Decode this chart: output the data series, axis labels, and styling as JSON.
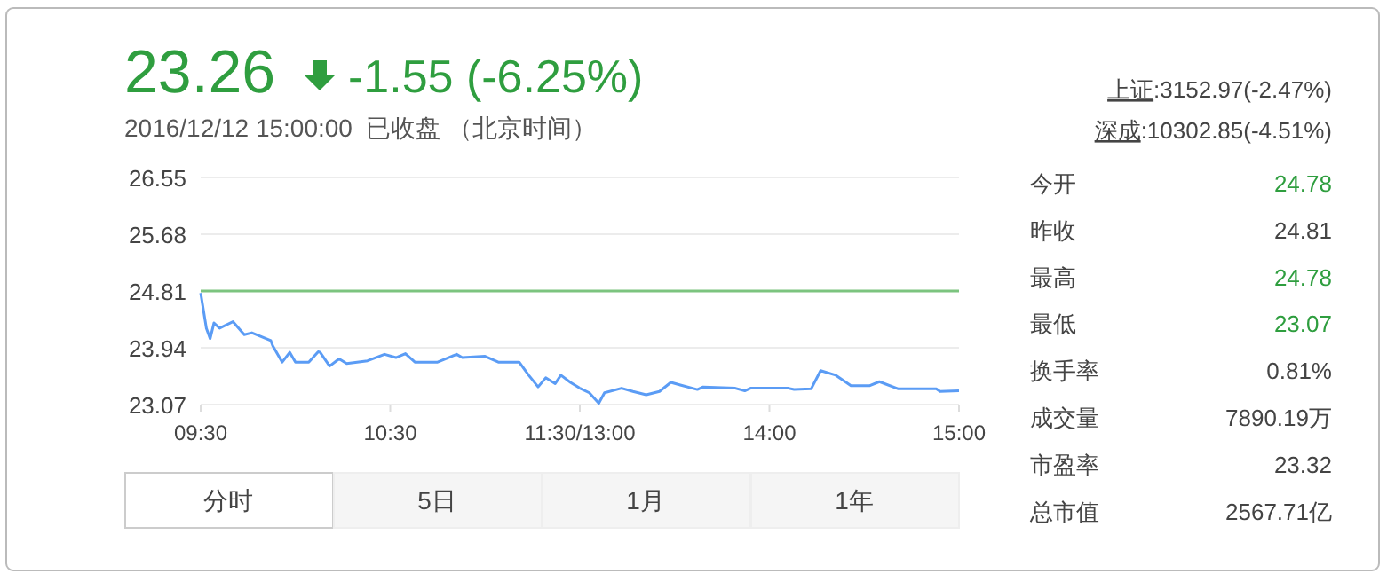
{
  "chart_data": [
    {
      "type": "line",
      "title": "23.26",
      "subtitle": "2016/12/12 15:00:00  已收盘 （北京时间）",
      "annotations": [
        "-1.55 (-6.25%)",
        "上证",
        ":3152.97(-2.47%)",
        "深成",
        ":10302.85(-4.51%)",
        "今开",
        "24.78",
        "昨收",
        "24.81",
        "最高",
        "24.78",
        "最低",
        "23.07",
        "换手率",
        "0.81%",
        "成交量",
        "7890.19万",
        "市盈率",
        "23.32",
        "总市值",
        "2567.71亿",
        "分时",
        "5日",
        "1月",
        "1年"
      ],
      "x": [
        9.5,
        9.53,
        9.55,
        9.57,
        9.6,
        9.67,
        9.73,
        9.77,
        9.87,
        9.88,
        9.93,
        9.97,
        10,
        10.07,
        10.12,
        10.13,
        10.18,
        10.23,
        10.27,
        10.38,
        10.47,
        10.53,
        10.58,
        10.63,
        10.75,
        10.85,
        10.88,
        11,
        11.07,
        11.18,
        11.23,
        11.28,
        11.32,
        11.37,
        11.4,
        11.45,
        11.5
      ],
      "values": [
        24.78,
        24.24,
        24.08,
        24.32,
        24.24,
        24.34,
        24.14,
        24.17,
        24.05,
        23.97,
        23.72,
        23.87,
        23.72,
        23.72,
        23.88,
        23.87,
        23.66,
        23.77,
        23.7,
        23.74,
        23.84,
        23.79,
        23.85,
        23.72,
        23.72,
        23.84,
        23.79,
        23.81,
        23.72,
        23.72,
        23.52,
        23.34,
        23.48,
        23.39,
        23.52,
        23.41,
        23.32
      ],
      "color": "#5b9cf5",
      "xlim": [
        9.5,
        11.5
      ],
      "ylim": [
        23.07,
        26.55
      ],
      "xticks": [
        {
          "value": 9.5,
          "label": "09:30"
        },
        {
          "value": 10.5,
          "label": "10:30"
        },
        {
          "value": 11.5,
          "label": "11:30/13:00"
        }
      ],
      "yticks": [
        23.07,
        23.94,
        24.81,
        25.68,
        26.55
      ],
      "grid": "y",
      "ref_lines": [
        {
          "axis": "y",
          "value": 24.81,
          "color": "#7cc47f"
        }
      ]
    },
    {
      "type": "line",
      "x": [
        13,
        13.05,
        13.1,
        13.13,
        13.22,
        13.28,
        13.35,
        13.42,
        13.48,
        13.53,
        13.62,
        13.65,
        13.82,
        13.87,
        13.9,
        14.1,
        14.13,
        14.22,
        14.27,
        14.35,
        14.43,
        14.53,
        14.58,
        14.68,
        14.88,
        14.9,
        15
      ],
      "values": [
        23.32,
        23.25,
        23.09,
        23.25,
        23.32,
        23.27,
        23.22,
        23.27,
        23.41,
        23.37,
        23.3,
        23.34,
        23.32,
        23.28,
        23.32,
        23.32,
        23.3,
        23.31,
        23.59,
        23.52,
        23.36,
        23.36,
        23.42,
        23.31,
        23.31,
        23.27,
        23.28
      ],
      "color": "#5b9cf5",
      "xlim": [
        13,
        15
      ],
      "ylim": [
        23.07,
        26.55
      ],
      "xticks": [
        {
          "value": 13,
          "label": null
        },
        {
          "value": 14,
          "label": "14:00"
        },
        {
          "value": 15,
          "label": "15:00"
        }
      ],
      "yticks": [
        23.07,
        23.94,
        24.81,
        25.68,
        26.55
      ],
      "grid": "y",
      "tick_labels": "x",
      "ref_lines": [
        {
          "axis": "y",
          "value": 24.81,
          "color": "#7cc47f"
        }
      ]
    }
  ]
}
